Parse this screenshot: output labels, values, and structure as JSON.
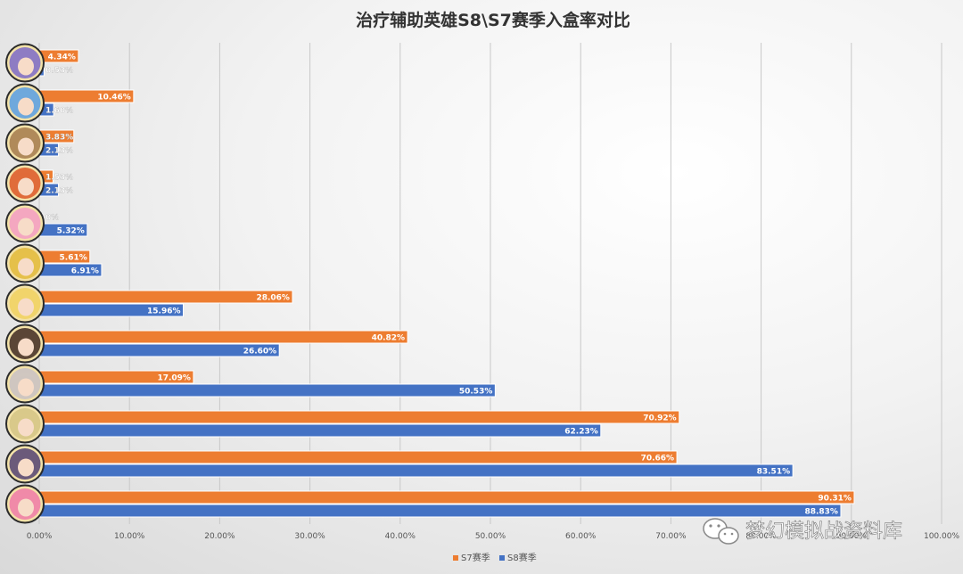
{
  "chart_data": {
    "type": "bar",
    "orientation": "horizontal",
    "title": "治疗辅助英雄S8\\S7赛季入盒率对比",
    "xlim": [
      0,
      100
    ],
    "x_ticks": [
      "0.00%",
      "10.00%",
      "20.00%",
      "30.00%",
      "40.00%",
      "50.00%",
      "60.00%",
      "70.00%",
      "80.00%",
      "90.00%",
      "100.00%"
    ],
    "grid": true,
    "legend_position": "bottom",
    "categories": [
      "hero-1",
      "hero-2",
      "hero-3",
      "hero-4",
      "hero-5",
      "hero-6",
      "hero-7",
      "hero-8",
      "hero-9",
      "hero-10",
      "hero-11",
      "hero-12"
    ],
    "series": [
      {
        "name": "S7赛季",
        "color": "#ED7D31",
        "values": [
          4.34,
          10.46,
          3.83,
          1.53,
          0,
          5.61,
          28.06,
          40.82,
          17.09,
          70.92,
          70.66,
          90.31
        ],
        "labels": [
          "4.34%",
          "10.46%",
          "3.83%",
          "1.53%",
          "0%",
          "5.61%",
          "28.06%",
          "40.82%",
          "17.09%",
          "70.92%",
          "70.66%",
          "90.31%"
        ]
      },
      {
        "name": "S8赛季",
        "color": "#4472C4",
        "values": [
          0.53,
          1.6,
          2.13,
          2.13,
          5.32,
          6.91,
          15.96,
          26.6,
          50.53,
          62.23,
          83.51,
          88.83
        ],
        "labels": [
          "0.53%",
          "1.60%",
          "2.13%",
          "2.13%",
          "5.32%",
          "6.91%",
          "15.96%",
          "26.60%",
          "50.53%",
          "62.23%",
          "83.51%",
          "88.83%"
        ]
      }
    ],
    "avatar_colors": [
      "#8e7cc3",
      "#6fa8dc",
      "#b08a5a",
      "#e06c3a",
      "#f4a7c0",
      "#e5c04a",
      "#f1d46b",
      "#5b4636",
      "#cfc6c0",
      "#d9c98a",
      "#6b5a7a",
      "#f08aa8"
    ]
  },
  "watermark": {
    "text": "梦幻模拟战资料库",
    "icon": "wechat-icon"
  }
}
